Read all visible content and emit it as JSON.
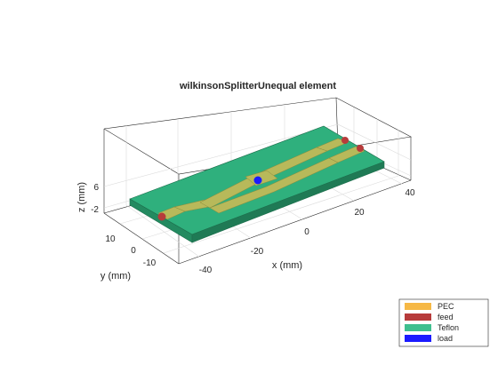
{
  "figure": {
    "title": "wilkinsonSplitterUnequal element"
  },
  "axes": {
    "xlabel": "x (mm)",
    "ylabel": "y (mm)",
    "zlabel": "z (mm)",
    "x_ticks": [
      "-40",
      "-20",
      "0",
      "20",
      "40"
    ],
    "y_ticks": [
      "10",
      "0",
      "-10"
    ],
    "z_ticks": [
      "6",
      "-2"
    ],
    "grid": true
  },
  "legend": {
    "position": "bottom-right",
    "items": [
      {
        "label": "PEC",
        "color": "#f6b845"
      },
      {
        "label": "feed",
        "color": "#b73b3b"
      },
      {
        "label": "Teflon",
        "color": "#3fbf8f"
      },
      {
        "label": "load",
        "color": "#1b1bff"
      }
    ]
  },
  "colors": {
    "substrate_top": "#2fb07d",
    "substrate_side": "#238a60",
    "conductor": "#b8b95a",
    "feed_port": "#b73b3b",
    "load_port": "#1b1bff"
  }
}
